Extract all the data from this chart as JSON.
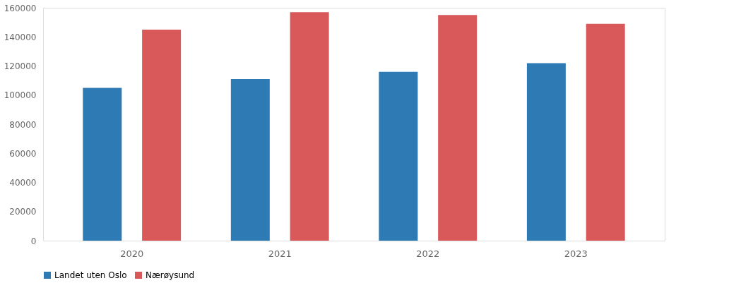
{
  "chart_data": {
    "type": "bar",
    "categories": [
      "2020",
      "2021",
      "2022",
      "2023"
    ],
    "series": [
      {
        "name": "Landet uten Oslo",
        "color": "#2e7ab5",
        "values": [
          105000,
          111000,
          116000,
          122000
        ]
      },
      {
        "name": "Nærøysund",
        "color": "#d9595a",
        "values": [
          145000,
          157000,
          155000,
          149000
        ]
      }
    ],
    "ylim": [
      0,
      160000
    ],
    "yticks": [
      0,
      20000,
      40000,
      60000,
      80000,
      100000,
      120000,
      140000,
      160000
    ],
    "grid": false,
    "legend": "bottom"
  }
}
